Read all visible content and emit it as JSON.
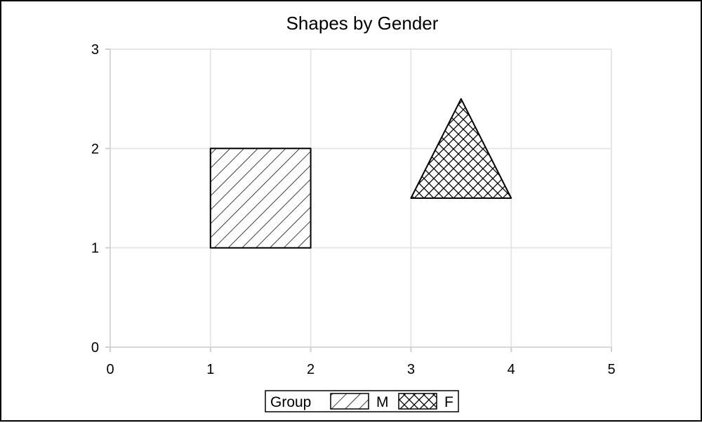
{
  "chart_data": {
    "type": "polygon",
    "title": "Shapes by Gender",
    "xlabel": "",
    "ylabel": "",
    "xlim": [
      0,
      5
    ],
    "ylim": [
      0,
      3
    ],
    "x_ticks": [
      0,
      1,
      2,
      3,
      4,
      5
    ],
    "y_ticks": [
      0,
      1,
      2,
      3
    ],
    "grid": true,
    "legend": {
      "title": "Group",
      "position": "bottom-center",
      "entries": [
        "M",
        "F"
      ]
    },
    "series": [
      {
        "name": "M",
        "shape": "square",
        "pattern": "diagonal-hatch",
        "points": [
          [
            1,
            1
          ],
          [
            2,
            1
          ],
          [
            2,
            2
          ],
          [
            1,
            2
          ]
        ]
      },
      {
        "name": "F",
        "shape": "triangle",
        "pattern": "cross-hatch",
        "points": [
          [
            3,
            1.5
          ],
          [
            4,
            1.5
          ],
          [
            3.5,
            2.5
          ]
        ]
      }
    ]
  },
  "colors": {
    "background": "#ffffff",
    "grid": "#e6e6e6",
    "outline": "#000000"
  }
}
